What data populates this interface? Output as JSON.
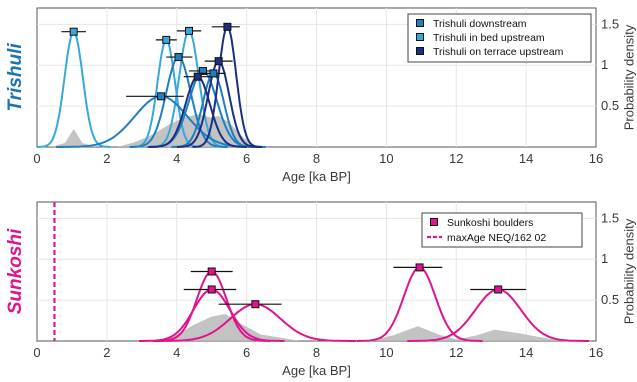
{
  "chart_data": [
    {
      "type": "line",
      "panel_label": "Trishuli",
      "xlabel": "Age [ka BP]",
      "ylabel": "Probability density",
      "xlim": [
        0,
        16
      ],
      "ylim": [
        0,
        1.7
      ],
      "xticks": [
        "0",
        "2",
        "4",
        "6",
        "8",
        "10",
        "12",
        "14",
        "16"
      ],
      "yticks": [
        "0.5",
        "1",
        "1.5"
      ],
      "grid": true,
      "legend_position": "top-right",
      "legend": [
        {
          "label": "Trishuli downstream",
          "color": "#1f7fc0"
        },
        {
          "label": "Trishuli in bed upstream",
          "color": "#36a8dd"
        },
        {
          "label": "Trishuli on terrace upstream",
          "color": "#1d2f80"
        }
      ],
      "kde_gray": [
        [
          0.4,
          0
        ],
        [
          0.8,
          0.05
        ],
        [
          1.05,
          0.22
        ],
        [
          1.3,
          0.05
        ],
        [
          1.7,
          0
        ],
        [
          2.3,
          0
        ],
        [
          2.8,
          0.06
        ],
        [
          3.3,
          0.15
        ],
        [
          3.8,
          0.28
        ],
        [
          4.2,
          0.36
        ],
        [
          4.6,
          0.4
        ],
        [
          5.0,
          0.36
        ],
        [
          5.2,
          0.38
        ],
        [
          5.5,
          0.3
        ],
        [
          5.9,
          0.12
        ],
        [
          6.3,
          0
        ]
      ],
      "series": [
        {
          "group": "Trishuli in bed upstream",
          "peak": 1.05,
          "sigma": 0.26,
          "y": 1.41,
          "x_err": [
            0.7,
            1.4
          ]
        },
        {
          "group": "Trishuli in bed upstream",
          "peak": 3.7,
          "sigma": 0.25,
          "y": 1.31,
          "x_err": [
            3.4,
            4.0
          ]
        },
        {
          "group": "Trishuli in bed upstream",
          "peak": 4.35,
          "sigma": 0.28,
          "y": 1.42,
          "x_err": [
            4.0,
            4.7
          ]
        },
        {
          "group": "Trishuli downstream",
          "peak": 3.55,
          "sigma": 0.75,
          "y": 0.62,
          "x_err": [
            2.55,
            4.2
          ]
        },
        {
          "group": "Trishuli downstream",
          "peak": 4.05,
          "sigma": 0.35,
          "y": 1.1,
          "x_err": [
            3.7,
            4.45
          ]
        },
        {
          "group": "Trishuli downstream",
          "peak": 4.75,
          "sigma": 0.4,
          "y": 0.93,
          "x_err": [
            4.35,
            5.15
          ]
        },
        {
          "group": "Trishuli downstream",
          "peak": 5.05,
          "sigma": 0.3,
          "y": 0.9,
          "x_err": [
            4.7,
            5.4
          ]
        },
        {
          "group": "Trishuli on terrace upstream",
          "peak": 4.6,
          "sigma": 0.35,
          "y": 0.86,
          "x_err": [
            4.2,
            4.95
          ]
        },
        {
          "group": "Trishuli on terrace upstream",
          "peak": 5.2,
          "sigma": 0.3,
          "y": 1.05,
          "x_err": [
            4.8,
            5.6
          ]
        },
        {
          "group": "Trishuli on terrace upstream",
          "peak": 5.45,
          "sigma": 0.25,
          "y": 1.47,
          "x_err": [
            5.0,
            5.8
          ]
        }
      ]
    },
    {
      "type": "line",
      "panel_label": "Sunkoshi",
      "xlabel": "Age [ka BP]",
      "ylabel": "Probability density",
      "xlim": [
        0,
        16
      ],
      "ylim": [
        0,
        1.7
      ],
      "xticks": [
        "0",
        "2",
        "4",
        "6",
        "8",
        "10",
        "12",
        "14",
        "16"
      ],
      "yticks": [
        "0.5",
        "1",
        "1.5"
      ],
      "grid": true,
      "legend_position": "top-right",
      "legend": [
        {
          "label": "Sunkoshi boulders",
          "color": "#e0148c"
        },
        {
          "label": "maxAge NEQ/162 02",
          "color": "#e0148c"
        }
      ],
      "max_age_line": 0.5,
      "kde_gray": [
        [
          3.4,
          0
        ],
        [
          4.0,
          0.08
        ],
        [
          4.5,
          0.2
        ],
        [
          5.0,
          0.3
        ],
        [
          5.4,
          0.33
        ],
        [
          5.8,
          0.22
        ],
        [
          6.4,
          0.08
        ],
        [
          7.0,
          0.04
        ],
        [
          7.5,
          0
        ],
        [
          9.5,
          0
        ],
        [
          10.2,
          0.07
        ],
        [
          10.9,
          0.18
        ],
        [
          11.5,
          0.08
        ],
        [
          12.0,
          0.02
        ],
        [
          12.6,
          0.07
        ],
        [
          13.1,
          0.14
        ],
        [
          13.7,
          0.1
        ],
        [
          14.5,
          0.04
        ],
        [
          15.1,
          0
        ]
      ],
      "series": [
        {
          "group": "Sunkoshi boulders",
          "peak": 5.0,
          "sigma": 0.42,
          "y": 0.85,
          "x_err": [
            4.4,
            5.6
          ]
        },
        {
          "group": "Sunkoshi boulders",
          "peak": 5.0,
          "sigma": 0.52,
          "y": 0.63,
          "x_err": [
            4.2,
            5.7
          ]
        },
        {
          "group": "Sunkoshi boulders",
          "peak": 6.25,
          "sigma": 0.72,
          "y": 0.45,
          "x_err": [
            5.2,
            7.0
          ]
        },
        {
          "group": "Sunkoshi boulders",
          "peak": 10.95,
          "sigma": 0.45,
          "y": 0.9,
          "x_err": [
            10.2,
            11.6
          ]
        },
        {
          "group": "Sunkoshi boulders",
          "peak": 13.2,
          "sigma": 0.65,
          "y": 0.63,
          "x_err": [
            12.4,
            14.0
          ]
        }
      ]
    }
  ]
}
